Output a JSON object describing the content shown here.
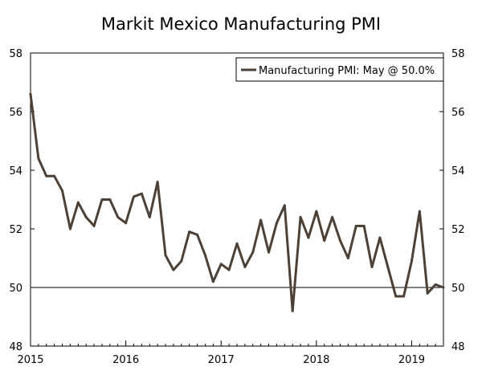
{
  "chart_data": {
    "type": "line",
    "title": "Markit Mexico Manufacturing PMI",
    "xlabel": "",
    "ylabel": "",
    "ylim": [
      48,
      58
    ],
    "y_ticks": [
      "48",
      "50",
      "52",
      "54",
      "56",
      "58"
    ],
    "x_ticks": [
      "2015",
      "2016",
      "2017",
      "2018",
      "2019"
    ],
    "reference_line": 50,
    "legend": "Manufacturing PMI: May @ 50.0%",
    "legend_position": "top-right",
    "series": [
      {
        "name": "Manufacturing PMI: May @ 50.0%",
        "color": "#4d4036",
        "start": "2015-01",
        "values": [
          56.6,
          54.4,
          53.8,
          53.8,
          53.3,
          52.0,
          52.9,
          52.4,
          52.1,
          53.0,
          53.0,
          52.4,
          52.2,
          53.1,
          53.2,
          52.4,
          53.6,
          51.1,
          50.6,
          50.9,
          51.9,
          51.8,
          51.1,
          50.2,
          50.8,
          50.6,
          51.5,
          50.7,
          51.2,
          52.3,
          51.2,
          52.2,
          52.8,
          49.2,
          52.4,
          51.7,
          52.6,
          51.6,
          52.4,
          51.6,
          51.0,
          52.1,
          52.1,
          50.7,
          51.7,
          50.7,
          49.7,
          49.7,
          50.9,
          52.6,
          49.8,
          50.1,
          50.0
        ]
      }
    ]
  }
}
